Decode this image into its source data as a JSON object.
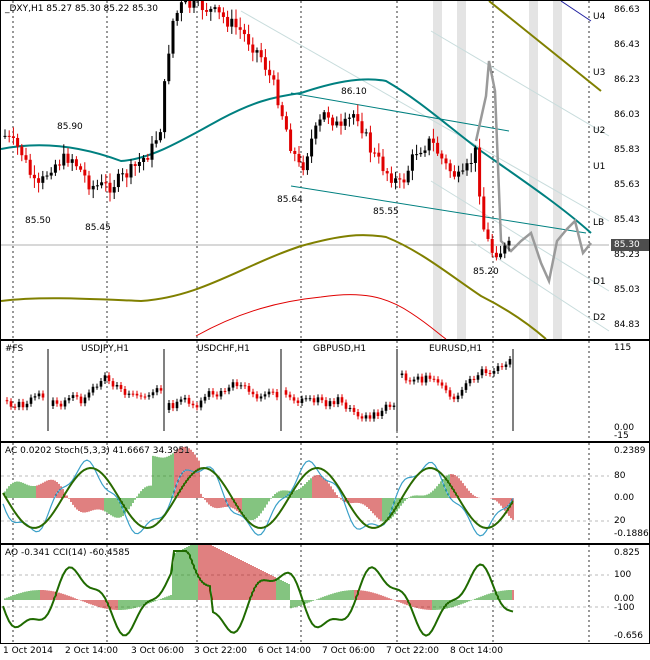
{
  "main": {
    "header": "_DXY,H1  85.27 85.30 85.22 85.30",
    "price_scale": [
      "86.63",
      "86.43",
      "86.23",
      "86.03",
      "85.83",
      "85.63",
      "85.43",
      "85.23",
      "85.03",
      "84.83"
    ],
    "current_price": "85.30",
    "levels": [
      "U4",
      "U3",
      "U2",
      "U1",
      "LB",
      "D1",
      "D2"
    ],
    "annotations": [
      "85.90",
      "85.50",
      "85.45",
      "86.10",
      "85.64",
      "85.55",
      "85.20"
    ]
  },
  "sub1": {
    "header": "#FS",
    "pairs": [
      "USDJPY,H1",
      "USDCHF,H1",
      "GBPUSD,H1",
      "EURUSD,H1"
    ],
    "scale": [
      "115",
      "0.00",
      "-15"
    ]
  },
  "sub2": {
    "header": "AC 0.0202  Stoch(5,3,3) 41.6667 34.3951",
    "scale": [
      "0.2389",
      "80",
      "0.00",
      "20",
      "-0.1886"
    ]
  },
  "sub3": {
    "header": "AO -0.341  CCI(14) -60.4585",
    "scale": [
      "0.825",
      "100",
      "0.00",
      "-100",
      "-0.656"
    ]
  },
  "time_axis": [
    "1 Oct 2014",
    "2 Oct 14:00",
    "3 Oct 06:00",
    "3 Oct 22:00",
    "6 Oct 14:00",
    "7 Oct 06:00",
    "7 Oct 22:00",
    "8 Oct 14:00"
  ],
  "colors": {
    "bull": "#000000",
    "bear": "#e00000",
    "teal": "#008080",
    "olive": "#808000",
    "grey": "#9a9a9a"
  }
}
